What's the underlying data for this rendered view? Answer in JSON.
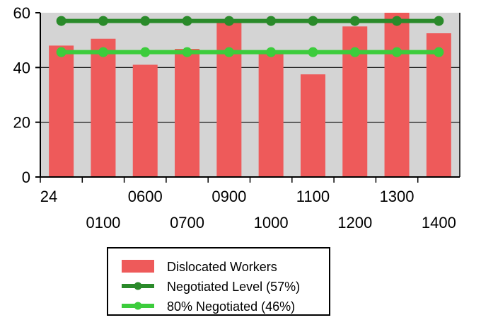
{
  "chart_data": {
    "type": "bar",
    "categories": [
      "24",
      "0100",
      "0600",
      "0700",
      "0900",
      "1000",
      "1100",
      "1200",
      "1300",
      "1400"
    ],
    "series": [
      {
        "name": "Dislocated Workers",
        "type": "bar",
        "color": "#ee5a5a",
        "values": [
          48,
          50.5,
          41,
          46.8,
          56.5,
          45,
          37.5,
          55,
          60,
          52.5
        ]
      },
      {
        "name": "Negotiated Level (57%)",
        "type": "line",
        "color": "#2a8a2a",
        "values": [
          57,
          57,
          57,
          57,
          57,
          57,
          57,
          57,
          57,
          57
        ]
      },
      {
        "name": "80% Negotiated (46%)",
        "type": "line",
        "color": "#3ccc3c",
        "values": [
          45.6,
          45.6,
          45.6,
          45.6,
          45.6,
          45.6,
          45.6,
          45.6,
          45.6,
          45.6
        ]
      }
    ],
    "ylim": [
      0,
      60
    ],
    "yticks": [
      "0",
      "20",
      "40",
      "60"
    ],
    "plot_background": "#d4d4d4",
    "grid": true,
    "legend_position": "bottom-center"
  }
}
